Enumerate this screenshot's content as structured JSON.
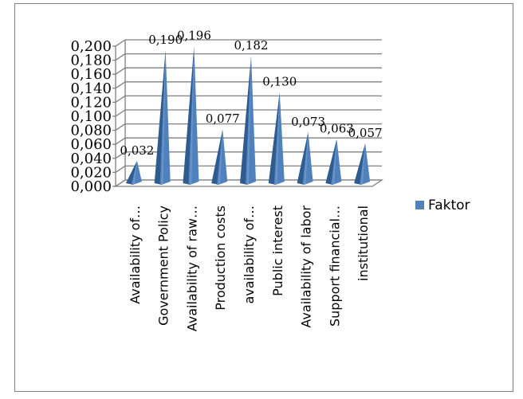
{
  "chart_data": {
    "type": "bar",
    "categories": [
      "Availability of…",
      "Government Policy",
      "Availability of raw…",
      "Production costs",
      "availability of…",
      "Public interest",
      "Availability of labor",
      "Support financial…",
      "institutional"
    ],
    "series": [
      {
        "name": "Faktor",
        "values": [
          0.032,
          0.19,
          0.196,
          0.077,
          0.182,
          0.13,
          0.073,
          0.063,
          0.057
        ]
      }
    ],
    "value_labels": [
      "0,032",
      "0,190",
      "0,196",
      "0,077",
      "0,182",
      "0,130",
      "0,073",
      "0,063",
      "0,057"
    ],
    "yticks": [
      "0,000",
      "0,020",
      "0,040",
      "0,060",
      "0,080",
      "0,100",
      "0,120",
      "0,140",
      "0,160",
      "0,180",
      "0,200"
    ],
    "ylim": [
      0,
      0.2
    ],
    "grid": true,
    "legend": "right",
    "bar_shape": "3d-pyramid",
    "colors": {
      "bar": "#4f81bd",
      "bar_dark": "#2e5c91",
      "bar_light": "#7aa2d6",
      "grid": "#808080"
    }
  }
}
